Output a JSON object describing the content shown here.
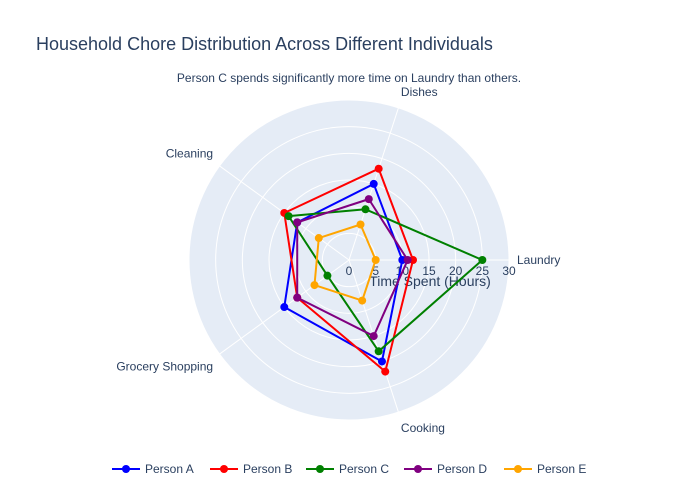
{
  "chart_data": {
    "type": "radar",
    "title": "Household Chore Distribution Across Different Individuals",
    "subtitle": "Person C spends significantly more time on Laundry than others.",
    "categories": [
      "Laundry",
      "Dishes",
      "Cleaning",
      "Grocery Shopping",
      "Cooking"
    ],
    "radial_axis": {
      "title": "Time Spent (Hours)",
      "range": [
        0,
        30
      ],
      "ticks": [
        0,
        5,
        10,
        15,
        20,
        25,
        30
      ],
      "tick_labels": [
        "0",
        "5",
        "10",
        "15",
        "20",
        "25",
        "30"
      ]
    },
    "series": [
      {
        "name": "Person A",
        "color": "#0000ff",
        "values": [
          10,
          15,
          12,
          15,
          20
        ]
      },
      {
        "name": "Person B",
        "color": "#ff0000",
        "values": [
          12,
          18,
          15,
          12,
          22
        ]
      },
      {
        "name": "Person C",
        "color": "#008000",
        "values": [
          25,
          10,
          14,
          5,
          18
        ]
      },
      {
        "name": "Person D",
        "color": "#800080",
        "values": [
          11,
          12,
          12,
          12,
          15
        ]
      },
      {
        "name": "Person E",
        "color": "#ffa500",
        "values": [
          5,
          7,
          7,
          8,
          8
        ]
      }
    ],
    "legend_position": "bottom"
  }
}
